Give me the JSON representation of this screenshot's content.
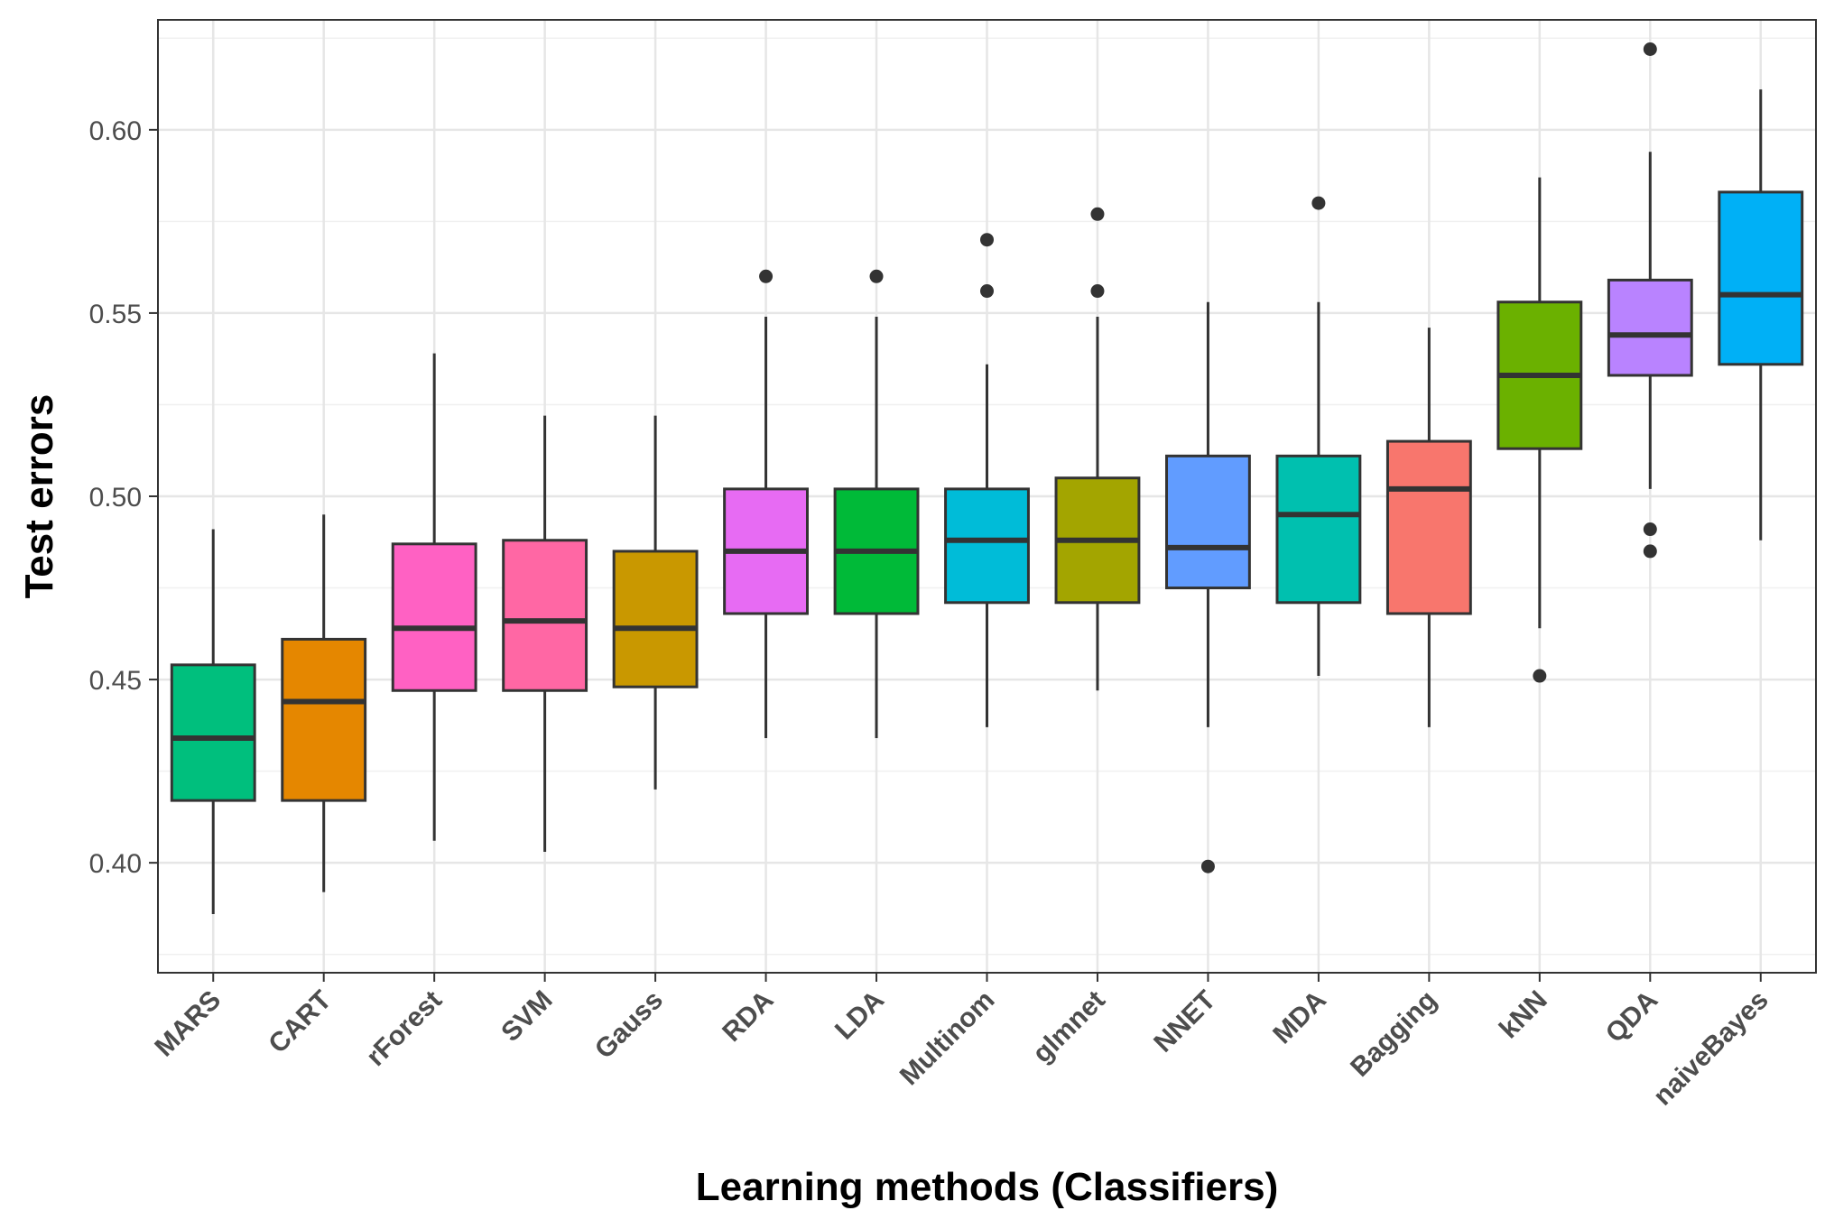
{
  "chart_data": {
    "type": "boxplot",
    "title": "",
    "xlabel": "Learning methods (Classifiers)",
    "ylabel": "Test errors",
    "ylim": [
      0.37,
      0.63
    ],
    "yticks": [
      0.4,
      0.45,
      0.5,
      0.55,
      0.6
    ],
    "ytick_labels": [
      "0.40",
      "0.45",
      "0.50",
      "0.55",
      "0.60"
    ],
    "grid": true,
    "categories": [
      "MARS",
      "CART",
      "rForest",
      "SVM",
      "Gauss",
      "RDA",
      "LDA",
      "Multinom",
      "glmnet",
      "NNET",
      "MDA",
      "Bagging",
      "kNN",
      "QDA",
      "naiveBayes"
    ],
    "boxes": [
      {
        "name": "MARS",
        "color": "#00BF7D",
        "whisker_low": 0.386,
        "q1": 0.417,
        "median": 0.434,
        "q3": 0.454,
        "whisker_high": 0.491,
        "outliers": []
      },
      {
        "name": "CART",
        "color": "#E58700",
        "whisker_low": 0.392,
        "q1": 0.417,
        "median": 0.444,
        "q3": 0.461,
        "whisker_high": 0.495,
        "outliers": []
      },
      {
        "name": "rForest",
        "color": "#FF61C3",
        "whisker_low": 0.406,
        "q1": 0.447,
        "median": 0.464,
        "q3": 0.487,
        "whisker_high": 0.539,
        "outliers": []
      },
      {
        "name": "SVM",
        "color": "#FF67A4",
        "whisker_low": 0.403,
        "q1": 0.447,
        "median": 0.466,
        "q3": 0.488,
        "whisker_high": 0.522,
        "outliers": []
      },
      {
        "name": "Gauss",
        "color": "#C99800",
        "whisker_low": 0.42,
        "q1": 0.448,
        "median": 0.464,
        "q3": 0.485,
        "whisker_high": 0.522,
        "outliers": []
      },
      {
        "name": "RDA",
        "color": "#E76BF3",
        "whisker_low": 0.434,
        "q1": 0.468,
        "median": 0.485,
        "q3": 0.502,
        "whisker_high": 0.549,
        "outliers": [
          0.56
        ]
      },
      {
        "name": "LDA",
        "color": "#00BA38",
        "whisker_low": 0.434,
        "q1": 0.468,
        "median": 0.485,
        "q3": 0.502,
        "whisker_high": 0.549,
        "outliers": [
          0.56
        ]
      },
      {
        "name": "Multinom",
        "color": "#00BCD8",
        "whisker_low": 0.437,
        "q1": 0.471,
        "median": 0.488,
        "q3": 0.502,
        "whisker_high": 0.536,
        "outliers": [
          0.556,
          0.57
        ]
      },
      {
        "name": "glmnet",
        "color": "#A3A500",
        "whisker_low": 0.447,
        "q1": 0.471,
        "median": 0.488,
        "q3": 0.505,
        "whisker_high": 0.549,
        "outliers": [
          0.556,
          0.577
        ]
      },
      {
        "name": "NNET",
        "color": "#619CFF",
        "whisker_low": 0.437,
        "q1": 0.475,
        "median": 0.486,
        "q3": 0.511,
        "whisker_high": 0.553,
        "outliers": [
          0.399
        ]
      },
      {
        "name": "MDA",
        "color": "#00C0AF",
        "whisker_low": 0.451,
        "q1": 0.471,
        "median": 0.495,
        "q3": 0.511,
        "whisker_high": 0.553,
        "outliers": [
          0.58
        ]
      },
      {
        "name": "Bagging",
        "color": "#F8766D",
        "whisker_low": 0.437,
        "q1": 0.468,
        "median": 0.502,
        "q3": 0.515,
        "whisker_high": 0.546,
        "outliers": []
      },
      {
        "name": "kNN",
        "color": "#6BB100",
        "whisker_low": 0.464,
        "q1": 0.513,
        "median": 0.533,
        "q3": 0.553,
        "whisker_high": 0.587,
        "outliers": [
          0.451
        ]
      },
      {
        "name": "QDA",
        "color": "#B983FF",
        "whisker_low": 0.502,
        "q1": 0.533,
        "median": 0.544,
        "q3": 0.559,
        "whisker_high": 0.594,
        "outliers": [
          0.485,
          0.491,
          0.622
        ]
      },
      {
        "name": "naiveBayes",
        "color": "#00B0F6",
        "whisker_low": 0.488,
        "q1": 0.536,
        "median": 0.555,
        "q3": 0.583,
        "whisker_high": 0.611,
        "outliers": []
      }
    ]
  }
}
